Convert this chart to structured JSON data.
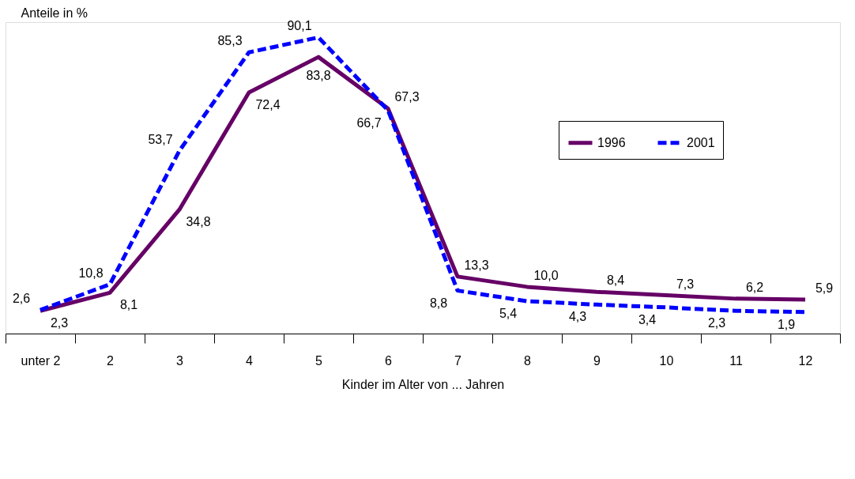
{
  "chart_data": {
    "type": "line",
    "title": "Anteile in %",
    "xlabel": "Kinder im Alter von ... Jahren",
    "categories": [
      "unter 2",
      "2",
      "3",
      "4",
      "5",
      "6",
      "7",
      "8",
      "9",
      "10",
      "11",
      "12"
    ],
    "ylim": [
      -5,
      95
    ],
    "grid": false,
    "legend": "top right",
    "series": [
      {
        "name": "1996",
        "color": "#660066",
        "line_style": "solid",
        "values": [
          2.3,
          8.1,
          34.8,
          72.4,
          83.8,
          67.3,
          13.3,
          10.0,
          8.4,
          7.3,
          6.2,
          5.9
        ],
        "value_labels": [
          "2,3",
          "8,1",
          "34,8",
          "72,4",
          "83,8",
          "67,3",
          "13,3",
          "10,0",
          "8,4",
          "7,3",
          "6,2",
          "5,9"
        ]
      },
      {
        "name": "2001",
        "color": "#0000ff",
        "line_style": "dashed",
        "values": [
          2.6,
          10.8,
          53.7,
          85.3,
          90.1,
          66.7,
          8.8,
          5.4,
          4.3,
          3.4,
          2.3,
          1.9
        ],
        "value_labels": [
          "2,6",
          "10,8",
          "53,7",
          "85,3",
          "90,1",
          "66,7",
          "8,8",
          "5,4",
          "4,3",
          "3,4",
          "2,3",
          "1,9"
        ]
      }
    ]
  }
}
